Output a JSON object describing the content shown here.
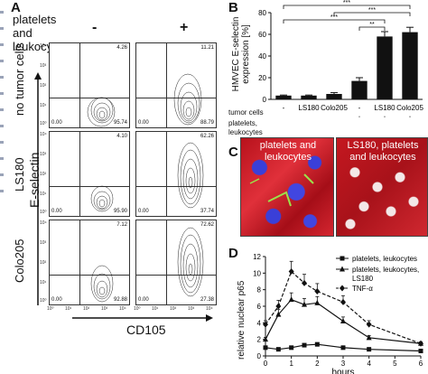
{
  "figure": {
    "left_strip_label": "",
    "panel_a": {
      "letter": "A",
      "header": "platelets and leukocytes",
      "col_minus": "-",
      "col_plus": "+",
      "row_labels": [
        "no tumor cells",
        "LS180",
        "Colo205"
      ],
      "y_axis": "E-selectin",
      "x_axis": "CD105",
      "quadrants": [
        {
          "ur": "4.26",
          "ll": "0.00",
          "lr": "95.74"
        },
        {
          "ur": "11.21",
          "ll": "0.00",
          "lr": "88.79"
        },
        {
          "ur": "4.10",
          "ll": "0.00",
          "lr": "95.90"
        },
        {
          "ur": "62.26",
          "ll": "0.00",
          "lr": "37.74"
        },
        {
          "ur": "7.12",
          "ll": "0.00",
          "lr": "92.88"
        },
        {
          "ur": "72.62",
          "ll": "0.00",
          "lr": "27.38"
        }
      ],
      "x_ticks": [
        "10⁰",
        "10¹",
        "10²",
        "10³",
        "10⁴"
      ],
      "y_ticks": [
        "10⁴",
        "10³",
        "10²",
        "10¹",
        "10⁰"
      ]
    },
    "panel_b": {
      "letter": "B",
      "ylabel_line1": "HMVEC E-selectin",
      "ylabel_line2": "expression [%]",
      "row1_label": "tumor cells",
      "row2_label": "platelets,",
      "row2_label_b": "leukocytes",
      "sig": [
        "***",
        "***",
        "***",
        "**"
      ]
    },
    "panel_c": {
      "letter": "C",
      "label_left_1": "platelets and",
      "label_left_2": "leukocytes",
      "label_right_1": "LS180, platelets",
      "label_right_2": "and leukocytes"
    },
    "panel_d": {
      "letter": "D",
      "ylabel": "relative nuclear p65",
      "xlabel": "hours",
      "legend": [
        {
          "name": "platelets, leukocytes"
        },
        {
          "name": "platelets, leukocytes,"
        },
        {
          "name": "LS180"
        },
        {
          "name": "TNF-α"
        }
      ]
    }
  },
  "chart_data": [
    {
      "type": "bar",
      "panel": "B",
      "categories": [
        "-",
        "LS180",
        "Colo205",
        "-",
        "LS180",
        "Colo205"
      ],
      "category_ticks": [
        "-",
        "LS180",
        "Colo205",
        "-",
        "LS180",
        "Colo205"
      ],
      "platelets_leukocytes": [
        "-",
        "-",
        "-",
        "+",
        "+",
        "+"
      ],
      "values": [
        3.5,
        3.5,
        5,
        17,
        58,
        62
      ],
      "errors": [
        0.5,
        0.5,
        1.2,
        3,
        4.5,
        4.5
      ],
      "yticks": [
        "0",
        "20",
        "40",
        "60",
        "80"
      ],
      "ylim": [
        0,
        80
      ],
      "ylabel": "HMVEC E-selectin expression [%]"
    },
    {
      "type": "line",
      "panel": "D",
      "x": [
        0,
        0.5,
        1,
        1.5,
        2,
        3,
        4,
        6
      ],
      "xticks": [
        "0",
        "1",
        "2",
        "3",
        "4",
        "5",
        "6"
      ],
      "yticks": [
        "0",
        "2",
        "4",
        "6",
        "8",
        "10",
        "12"
      ],
      "xlim": [
        0,
        6
      ],
      "ylim": [
        0,
        12
      ],
      "xlabel": "hours",
      "ylabel": "relative nuclear p65",
      "series": [
        {
          "name": "platelets, leukocytes",
          "values": [
            1.0,
            0.8,
            1.0,
            1.3,
            1.4,
            1.0,
            0.8,
            0.6
          ],
          "marker": "square",
          "dash": "solid"
        },
        {
          "name": "platelets, leukocytes, LS180",
          "values": [
            2.0,
            5.0,
            6.8,
            6.2,
            6.4,
            4.2,
            2.2,
            1.5
          ],
          "marker": "triangle",
          "dash": "solid"
        },
        {
          "name": "TNF-α",
          "values": [
            3.8,
            6.0,
            10.2,
            8.8,
            7.8,
            6.5,
            3.8,
            1.5
          ],
          "marker": "diamond",
          "dash": "dashed"
        }
      ]
    }
  ]
}
